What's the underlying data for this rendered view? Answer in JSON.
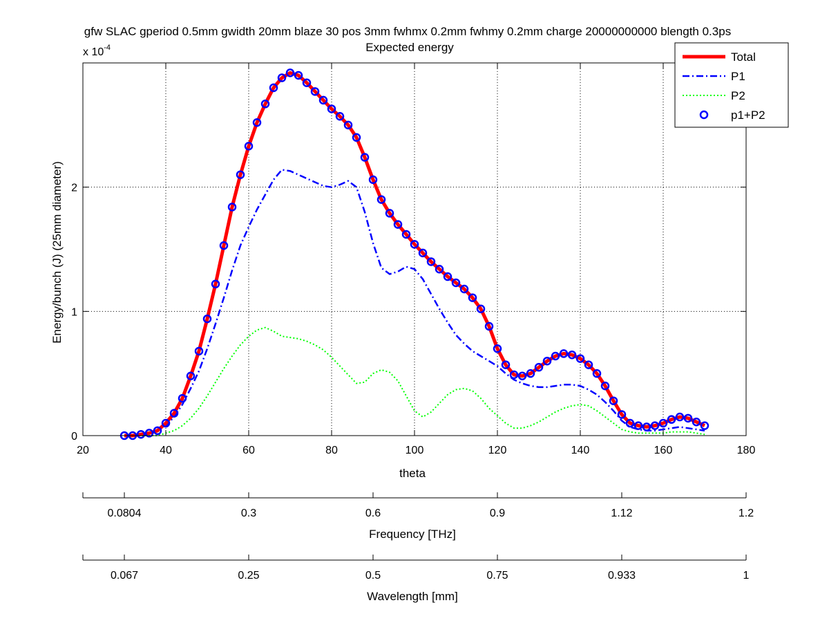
{
  "chart_data": {
    "type": "line",
    "title": "gfw SLAC gperiod 0.5mm gwidth 20mm blaze 30 pos 3mm fwhmx 0.2mm fwhmy 0.2mm charge 20000000000 blength 0.3ps",
    "subtitle": "Expected energy",
    "xlabel": "theta",
    "ylabel": "Energy/bunch (J) (25mm diameter)",
    "y_multiplier": "x 10",
    "y_multiplier_exp": "-4",
    "xlim": [
      20,
      180
    ],
    "ylim": [
      0,
      3.0
    ],
    "x_ticks": [
      20,
      40,
      60,
      80,
      100,
      120,
      140,
      160,
      180
    ],
    "y_ticks": [
      0,
      1,
      2
    ],
    "grid": true,
    "legend_position": "top-right",
    "colors": {
      "Total": "#ff0000",
      "P1": "#0000ff",
      "P2": "#00ff00",
      "p1+P2": "#0000ff"
    },
    "series": [
      {
        "name": "Total",
        "style": "solid",
        "x": [
          30,
          32,
          34,
          36,
          38,
          40,
          42,
          44,
          46,
          48,
          50,
          52,
          54,
          56,
          58,
          60,
          62,
          64,
          66,
          68,
          70,
          72,
          74,
          76,
          78,
          80,
          82,
          84,
          86,
          88,
          90,
          92,
          94,
          96,
          98,
          100,
          102,
          104,
          106,
          108,
          110,
          112,
          114,
          116,
          118,
          120,
          122,
          124,
          126,
          128,
          130,
          132,
          134,
          136,
          138,
          140,
          142,
          144,
          146,
          148,
          150,
          152,
          154,
          156,
          158,
          160,
          162,
          164,
          166,
          168,
          170
        ],
        "values": [
          0.0,
          0.0,
          0.01,
          0.02,
          0.04,
          0.1,
          0.18,
          0.3,
          0.48,
          0.68,
          0.94,
          1.22,
          1.53,
          1.84,
          2.1,
          2.33,
          2.52,
          2.67,
          2.8,
          2.88,
          2.92,
          2.9,
          2.84,
          2.77,
          2.7,
          2.63,
          2.57,
          2.5,
          2.4,
          2.24,
          2.06,
          1.9,
          1.79,
          1.7,
          1.62,
          1.54,
          1.47,
          1.4,
          1.34,
          1.28,
          1.23,
          1.18,
          1.11,
          1.02,
          0.88,
          0.7,
          0.57,
          0.49,
          0.48,
          0.5,
          0.55,
          0.6,
          0.64,
          0.66,
          0.65,
          0.62,
          0.57,
          0.5,
          0.4,
          0.28,
          0.17,
          0.1,
          0.08,
          0.07,
          0.08,
          0.1,
          0.13,
          0.15,
          0.14,
          0.11,
          0.08
        ]
      },
      {
        "name": "P1",
        "style": "dashdot",
        "x": [
          30,
          32,
          34,
          36,
          38,
          40,
          42,
          44,
          46,
          48,
          50,
          52,
          54,
          56,
          58,
          60,
          62,
          64,
          66,
          68,
          70,
          72,
          74,
          76,
          78,
          80,
          82,
          84,
          86,
          88,
          90,
          92,
          94,
          96,
          98,
          100,
          102,
          104,
          106,
          108,
          110,
          112,
          114,
          116,
          118,
          120,
          122,
          124,
          126,
          128,
          130,
          132,
          134,
          136,
          138,
          140,
          142,
          144,
          146,
          148,
          150,
          152,
          154,
          156,
          158,
          160,
          162,
          164,
          166,
          168,
          170
        ],
        "values": [
          0.0,
          0.0,
          0.01,
          0.02,
          0.04,
          0.08,
          0.15,
          0.25,
          0.38,
          0.52,
          0.7,
          0.9,
          1.11,
          1.33,
          1.53,
          1.68,
          1.82,
          1.94,
          2.06,
          2.14,
          2.13,
          2.1,
          2.07,
          2.04,
          2.01,
          2.0,
          2.02,
          2.05,
          2.0,
          1.8,
          1.55,
          1.35,
          1.3,
          1.32,
          1.36,
          1.34,
          1.26,
          1.14,
          1.02,
          0.91,
          0.81,
          0.74,
          0.68,
          0.64,
          0.6,
          0.56,
          0.5,
          0.45,
          0.42,
          0.4,
          0.39,
          0.39,
          0.4,
          0.41,
          0.41,
          0.4,
          0.37,
          0.33,
          0.27,
          0.2,
          0.12,
          0.07,
          0.05,
          0.04,
          0.04,
          0.05,
          0.06,
          0.07,
          0.06,
          0.05,
          0.04
        ]
      },
      {
        "name": "P2",
        "style": "dotted",
        "x": [
          30,
          32,
          34,
          36,
          38,
          40,
          42,
          44,
          46,
          48,
          50,
          52,
          54,
          56,
          58,
          60,
          62,
          64,
          66,
          68,
          70,
          72,
          74,
          76,
          78,
          80,
          82,
          84,
          86,
          88,
          90,
          92,
          94,
          96,
          98,
          100,
          102,
          104,
          106,
          108,
          110,
          112,
          114,
          116,
          118,
          120,
          122,
          124,
          126,
          128,
          130,
          132,
          134,
          136,
          138,
          140,
          142,
          144,
          146,
          148,
          150,
          152,
          154,
          156,
          158,
          160,
          162,
          164,
          166,
          168,
          170
        ],
        "values": [
          0.0,
          0.0,
          0.0,
          0.0,
          0.0,
          0.02,
          0.04,
          0.08,
          0.14,
          0.22,
          0.32,
          0.43,
          0.54,
          0.64,
          0.73,
          0.8,
          0.85,
          0.87,
          0.84,
          0.8,
          0.79,
          0.78,
          0.76,
          0.73,
          0.69,
          0.63,
          0.56,
          0.49,
          0.42,
          0.43,
          0.5,
          0.53,
          0.51,
          0.44,
          0.32,
          0.2,
          0.15,
          0.19,
          0.26,
          0.33,
          0.37,
          0.38,
          0.36,
          0.3,
          0.22,
          0.16,
          0.1,
          0.06,
          0.06,
          0.08,
          0.11,
          0.15,
          0.19,
          0.22,
          0.24,
          0.25,
          0.24,
          0.2,
          0.15,
          0.1,
          0.05,
          0.03,
          0.02,
          0.02,
          0.02,
          0.02,
          0.03,
          0.03,
          0.03,
          0.02,
          0.01
        ]
      },
      {
        "name": "p1+P2",
        "style": "circles",
        "x": [
          30,
          32,
          34,
          36,
          38,
          40,
          42,
          44,
          46,
          48,
          50,
          52,
          54,
          56,
          58,
          60,
          62,
          64,
          66,
          68,
          70,
          72,
          74,
          76,
          78,
          80,
          82,
          84,
          86,
          88,
          90,
          92,
          94,
          96,
          98,
          100,
          102,
          104,
          106,
          108,
          110,
          112,
          114,
          116,
          118,
          120,
          122,
          124,
          126,
          128,
          130,
          132,
          134,
          136,
          138,
          140,
          142,
          144,
          146,
          148,
          150,
          152,
          154,
          156,
          158,
          160,
          162,
          164,
          166,
          168,
          170
        ],
        "values": [
          0.0,
          0.0,
          0.01,
          0.02,
          0.04,
          0.1,
          0.18,
          0.3,
          0.48,
          0.68,
          0.94,
          1.22,
          1.53,
          1.84,
          2.1,
          2.33,
          2.52,
          2.67,
          2.8,
          2.88,
          2.92,
          2.9,
          2.84,
          2.77,
          2.7,
          2.63,
          2.57,
          2.5,
          2.4,
          2.24,
          2.06,
          1.9,
          1.79,
          1.7,
          1.62,
          1.54,
          1.47,
          1.4,
          1.34,
          1.28,
          1.23,
          1.18,
          1.11,
          1.02,
          0.88,
          0.7,
          0.57,
          0.49,
          0.48,
          0.5,
          0.55,
          0.6,
          0.64,
          0.66,
          0.65,
          0.62,
          0.57,
          0.5,
          0.4,
          0.28,
          0.17,
          0.1,
          0.08,
          0.07,
          0.08,
          0.1,
          0.13,
          0.15,
          0.14,
          0.11,
          0.08
        ]
      }
    ],
    "secondary_axes": [
      {
        "label": "Frequency [THz]",
        "ticks": [
          "0.0804",
          "0.3",
          "0.6",
          "0.9",
          "1.12",
          "1.2"
        ],
        "tick_theta": [
          30,
          60,
          90,
          120,
          150,
          180
        ]
      },
      {
        "label": "Wavelength [mm]",
        "ticks": [
          "0.067",
          "0.25",
          "0.5",
          "0.75",
          "0.933",
          "1"
        ],
        "tick_theta": [
          30,
          60,
          90,
          120,
          150,
          180
        ]
      }
    ]
  }
}
